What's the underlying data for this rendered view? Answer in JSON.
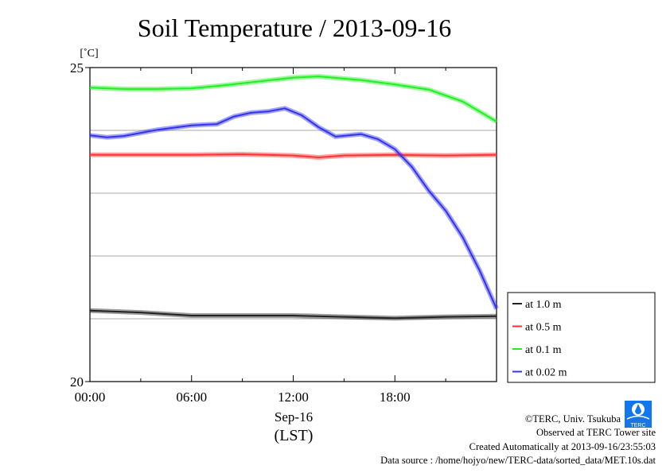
{
  "chart_data": {
    "type": "line",
    "title": "Soil Temperature / 2013-09-16",
    "ylabel": "[˚C]",
    "xlabel_date": "Sep-16",
    "xlabel_tz": "(LST)",
    "ylim": [
      20,
      25
    ],
    "xlim": [
      0,
      24
    ],
    "y_ticks": [
      "20",
      "25"
    ],
    "y_tick_values": [
      20,
      25
    ],
    "x_ticks": [
      "00:00",
      "06:00",
      "12:00",
      "18:00"
    ],
    "x_tick_values": [
      0,
      6,
      12,
      18
    ],
    "grid": true,
    "legend_placement": "right-bottom",
    "series": [
      {
        "name": "at 1.0 m",
        "color": "#222222",
        "x": [
          0,
          3,
          6,
          9,
          12,
          15,
          18,
          21,
          24
        ],
        "y": [
          21.13,
          21.1,
          21.05,
          21.05,
          21.05,
          21.03,
          21.01,
          21.03,
          21.04
        ]
      },
      {
        "name": "at 0.5 m",
        "color": "#ff3333",
        "x": [
          0,
          3,
          6,
          9,
          12,
          13.5,
          15,
          18,
          21,
          24
        ],
        "y": [
          23.61,
          23.61,
          23.61,
          23.62,
          23.6,
          23.57,
          23.6,
          23.61,
          23.6,
          23.61
        ]
      },
      {
        "name": "at 0.1 m",
        "color": "#22ee22",
        "x": [
          0,
          2,
          4,
          6,
          8,
          10,
          12,
          13.5,
          16,
          18,
          20,
          22,
          24
        ],
        "y": [
          24.68,
          24.66,
          24.66,
          24.67,
          24.72,
          24.78,
          24.84,
          24.86,
          24.8,
          24.73,
          24.65,
          24.46,
          24.14
        ]
      },
      {
        "name": "at 0.02 m",
        "color": "#3333ee",
        "x": [
          0,
          1,
          2,
          4,
          6,
          7.5,
          8.5,
          9.5,
          10.5,
          11.5,
          12.5,
          13.5,
          14.5,
          16,
          17,
          18,
          19,
          20,
          21,
          22,
          23,
          24
        ],
        "y": [
          23.92,
          23.89,
          23.91,
          24.01,
          24.08,
          24.1,
          24.22,
          24.28,
          24.3,
          24.35,
          24.24,
          24.05,
          23.9,
          23.94,
          23.86,
          23.7,
          23.42,
          23.04,
          22.72,
          22.3,
          21.77,
          21.16
        ]
      }
    ]
  },
  "footer": {
    "copyright": "©TERC, Univ. Tsukuba",
    "observed": "Observed at TERC Tower site",
    "created": "Created Automatically at 2013-09-16/23:55:03",
    "source": "Data source : /home/hojyo/new/TERC-data/sorted_data/MET.10s.dat",
    "logo_text": "TERC"
  }
}
